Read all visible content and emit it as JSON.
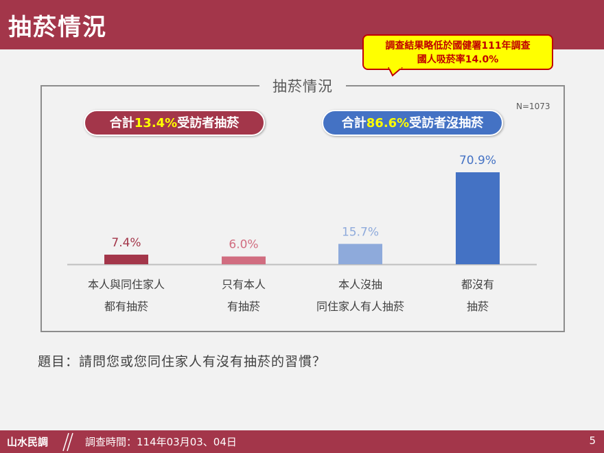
{
  "header": {
    "title": "抽菸情況"
  },
  "callout": {
    "line1": "調查結果略低於國健署111年調查",
    "line2": "國人吸菸率14.0%"
  },
  "frame": {
    "title": "抽菸情況",
    "n_label": "N=1073"
  },
  "pills": {
    "smokers": {
      "prefix": "合計",
      "value": "13.4%",
      "suffix": "受訪者抽菸"
    },
    "non_smokers": {
      "prefix": "合計",
      "value": "86.6%",
      "suffix_a": "受訪者",
      "suffix_b": "沒",
      "suffix_c": "抽菸"
    }
  },
  "chart_data": {
    "type": "bar",
    "categories": [
      "本人與同住家人\n都有抽菸",
      "只有本人\n有抽菸",
      "本人沒抽\n同住家人有人抽菸",
      "都沒有\n抽菸"
    ],
    "category_lines": [
      [
        "本人與同住家人",
        "都有抽菸"
      ],
      [
        "只有本人",
        "有抽菸"
      ],
      [
        "本人沒抽",
        "同住家人有人抽菸"
      ],
      [
        "都沒有",
        "抽菸"
      ]
    ],
    "values": [
      7.4,
      6.0,
      15.7,
      70.9
    ],
    "value_labels": [
      "7.4%",
      "6.0%",
      "15.7%",
      "70.9%"
    ],
    "colors": [
      "#a3364a",
      "#d16d80",
      "#8eaadb",
      "#4472c4"
    ],
    "ylim": [
      0,
      75
    ],
    "grid": false
  },
  "question": {
    "text": "題目：請問您或您同住家人有沒有抽菸的習慣？"
  },
  "footer": {
    "org": "山水民調",
    "date": "調查時間：114年03月03、04日",
    "page": "5"
  }
}
